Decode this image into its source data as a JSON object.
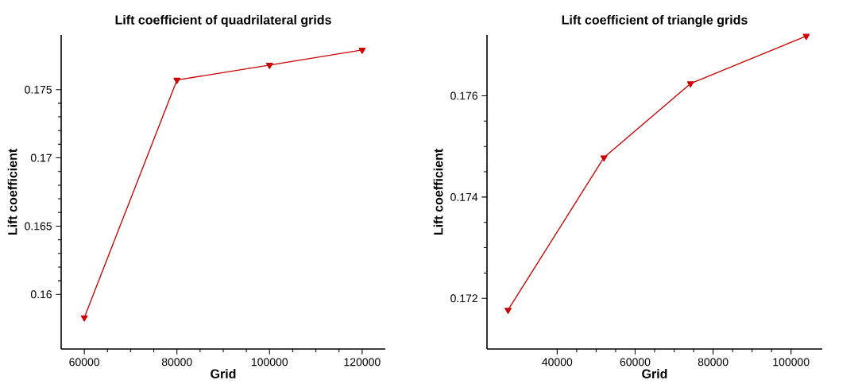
{
  "chart_data": [
    {
      "type": "line",
      "title": "Lift coefficient of quadrilateral grids",
      "xlabel": "Grid",
      "ylabel": "Lift coefficient",
      "x": [
        60000,
        80000,
        100000,
        120000
      ],
      "series": [
        {
          "color": "#cc0000",
          "values": [
            0.1583,
            0.1757,
            0.1768,
            0.1779
          ]
        }
      ],
      "xlim": [
        55000,
        125000
      ],
      "xticks": [
        60000,
        80000,
        100000,
        120000
      ],
      "ylim": [
        0.156,
        0.179
      ],
      "yticks": [
        0.16,
        0.165,
        0.17,
        0.175
      ],
      "marker": "triangle",
      "line_style": "solid"
    },
    {
      "type": "line",
      "title": "Lift coefficient of triangle grids",
      "xlabel": "Grid",
      "ylabel": "Lift coefficient",
      "x": [
        27400,
        52000,
        74200,
        103900
      ],
      "series": [
        {
          "color": "#cc0000",
          "values": [
            0.17177,
            0.17478,
            0.17624,
            0.17718
          ]
        }
      ],
      "xlim": [
        22000,
        108000
      ],
      "xticks": [
        40000,
        60000,
        80000,
        100000
      ],
      "ylim": [
        0.171,
        0.1772
      ],
      "yticks": [
        0.172,
        0.174,
        0.176
      ],
      "marker": "triangle",
      "line_style": "solid"
    }
  ]
}
